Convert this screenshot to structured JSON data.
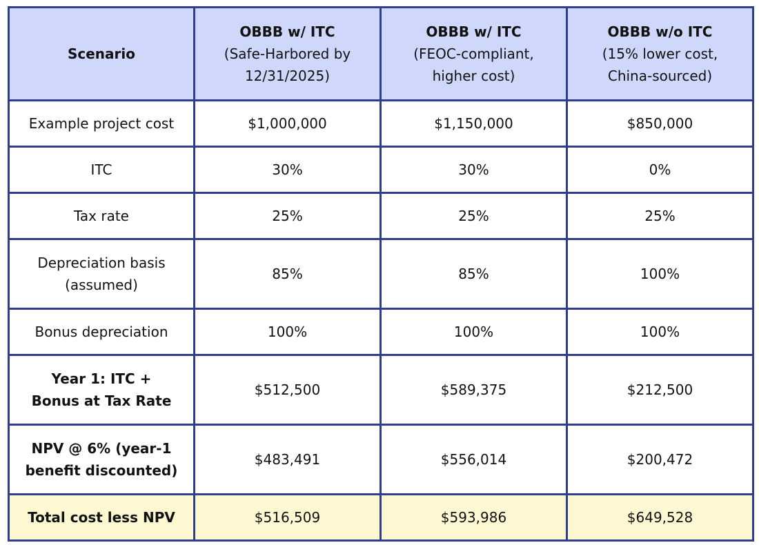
{
  "table": {
    "header": {
      "scenario_label": "Scenario",
      "columns": [
        {
          "title": "OBBB w/ ITC",
          "subtitle_line1": "(Safe-Harbored by",
          "subtitle_line2": "12/31/2025)"
        },
        {
          "title": "OBBB w/ ITC",
          "subtitle_line1": "(FEOC-compliant,",
          "subtitle_line2": "higher cost)"
        },
        {
          "title": "OBBB w/o ITC",
          "subtitle_line1": "(15% lower cost,",
          "subtitle_line2": "China-sourced)"
        }
      ]
    },
    "rows": [
      {
        "label_line1": "Example project cost",
        "label_line2": "",
        "values": [
          "$1,000,000",
          "$1,150,000",
          "$850,000"
        ]
      },
      {
        "label_line1": "ITC",
        "label_line2": "",
        "values": [
          "30%",
          "30%",
          "0%"
        ]
      },
      {
        "label_line1": "Tax rate",
        "label_line2": "",
        "values": [
          "25%",
          "25%",
          "25%"
        ]
      },
      {
        "label_line1": "Depreciation basis",
        "label_line2": "(assumed)",
        "values": [
          "85%",
          "85%",
          "100%"
        ]
      },
      {
        "label_line1": "Bonus depreciation",
        "label_line2": "",
        "values": [
          "100%",
          "100%",
          "100%"
        ]
      },
      {
        "label_line1": "Year 1: ITC +",
        "label_line2": "Bonus at Tax Rate",
        "values": [
          "$512,500",
          "$589,375",
          "$212,500"
        ]
      },
      {
        "label_line1": "NPV @ 6% (year-1",
        "label_line2": "benefit discounted)",
        "values": [
          "$483,491",
          "$556,014",
          "$200,472"
        ]
      }
    ],
    "total": {
      "label": "Total cost less NPV",
      "values": [
        "$516,509",
        "$593,986",
        "$649,528"
      ]
    },
    "colors": {
      "border": "#2e3d8f",
      "header_bg": "#cfd7fb",
      "total_bg": "#fdf8d2"
    }
  }
}
